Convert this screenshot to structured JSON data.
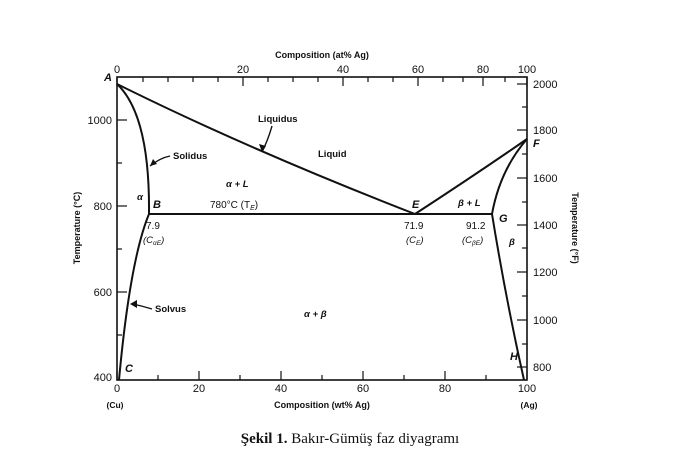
{
  "top_axis": {
    "title": "Composition (at% Ag)",
    "ticks": [
      "0",
      "20",
      "40",
      "60",
      "80",
      "100"
    ]
  },
  "bottom_axis": {
    "title": "Composition (wt% Ag)",
    "ticks": [
      "0",
      "20",
      "40",
      "60",
      "80",
      "100"
    ],
    "left_end": "(Cu)",
    "right_end": "(Ag)"
  },
  "left_axis": {
    "title": "Temperature (°C)",
    "ticks": [
      "400",
      "600",
      "800",
      "1000"
    ]
  },
  "right_axis": {
    "title": "Temperature (°F)",
    "ticks": [
      "800",
      "1000",
      "1200",
      "1400",
      "1600",
      "1800",
      "2000"
    ]
  },
  "points": {
    "A": "A",
    "B": "B",
    "C": "C",
    "E": "E",
    "F": "F",
    "G": "G",
    "H": "H"
  },
  "labels": {
    "liquidus": "Liquidus",
    "liquid": "Liquid",
    "solidus": "Solidus",
    "solvus": "Solvus",
    "alpha": "α",
    "beta": "β",
    "alpha_plus_L": "α + L",
    "beta_plus_L": "β + L",
    "alpha_plus_beta": "α + β",
    "eutectic_temp": "780°C (T",
    "eutectic_temp_sub": "E",
    "eutectic_temp_close": ")",
    "b_value": "7.9",
    "b_sym": "(C",
    "b_sym_sub": "αE",
    "b_sym_close": ")",
    "e_value": "71.9",
    "e_sym": "(C",
    "e_sym_sub": "E",
    "e_sym_close": ")",
    "g_value": "91.2",
    "g_sym": "(C",
    "g_sym_sub": "βE",
    "g_sym_close": ")"
  },
  "caption": {
    "bold": "Şekil 1.",
    "text": " Bakır-Gümüş faz diyagramı"
  }
}
